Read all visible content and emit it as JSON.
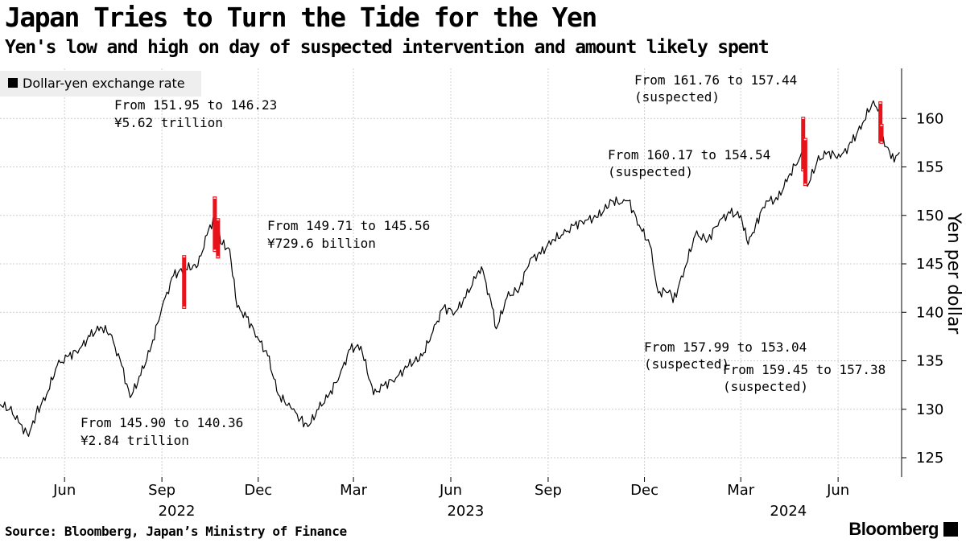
{
  "header": {
    "title": "Japan Tries to Turn the Tide for the Yen",
    "subtitle": "Yen's low and high on day of suspected intervention and amount likely spent"
  },
  "footer": {
    "source": "Source: Bloomberg, Japan’s Ministry of Finance",
    "brand": "Bloomberg"
  },
  "colors": {
    "series": "#000000",
    "intervention": "#e8121b",
    "grid": "#cfcfcf"
  },
  "chart_data": {
    "type": "line",
    "title": "Japan Tries to Turn the Tide for the Yen",
    "subtitle": "Yen's low and high on day of suspected intervention and amount likely spent",
    "ylabel": "Yen per dollar",
    "xlabel": "",
    "ylim": [
      123,
      160.5
    ],
    "xlim": [
      "2022-04-01",
      "2024-07-31"
    ],
    "yticks": [
      125,
      130,
      135,
      140,
      145,
      150,
      155,
      160
    ],
    "xticks": [
      {
        "date": "2022-06-01",
        "label": "Jun"
      },
      {
        "date": "2022-09-01",
        "label": "Sep"
      },
      {
        "date": "2022-12-01",
        "label": "Dec"
      },
      {
        "date": "2023-03-01",
        "label": "Mar"
      },
      {
        "date": "2023-06-01",
        "label": "Jun"
      },
      {
        "date": "2023-09-01",
        "label": "Sep"
      },
      {
        "date": "2023-12-01",
        "label": "Dec"
      },
      {
        "date": "2024-03-01",
        "label": "Mar"
      },
      {
        "date": "2024-06-01",
        "label": "Jun"
      }
    ],
    "year_labels": [
      {
        "date": "2022-09-15",
        "label": "2022"
      },
      {
        "date": "2023-06-15",
        "label": "2023"
      },
      {
        "date": "2024-04-15",
        "label": "2024"
      }
    ],
    "legend": {
      "label": "Dollar-yen exchange rate",
      "position": "top-left"
    },
    "grid": true,
    "series": [
      {
        "name": "Dollar-yen exchange rate",
        "points": [
          [
            "2022-04-01",
            130.5
          ],
          [
            "2022-04-10",
            130.0
          ],
          [
            "2022-04-20",
            128.5
          ],
          [
            "2022-04-28",
            127.2
          ],
          [
            "2022-05-05",
            129.5
          ],
          [
            "2022-05-15",
            131.5
          ],
          [
            "2022-05-25",
            134.5
          ],
          [
            "2022-06-05",
            135.5
          ],
          [
            "2022-06-15",
            136.2
          ],
          [
            "2022-06-25",
            137.5
          ],
          [
            "2022-07-05",
            138.5
          ],
          [
            "2022-07-14",
            137.8
          ],
          [
            "2022-07-25",
            134.5
          ],
          [
            "2022-08-02",
            131.2
          ],
          [
            "2022-08-12",
            133.5
          ],
          [
            "2022-08-22",
            136.5
          ],
          [
            "2022-09-01",
            140.5
          ],
          [
            "2022-09-12",
            143.8
          ],
          [
            "2022-09-22",
            144.5
          ],
          [
            "2022-10-05",
            144.8
          ],
          [
            "2022-10-15",
            148.5
          ],
          [
            "2022-10-21",
            149.8
          ],
          [
            "2022-10-28",
            147.0
          ],
          [
            "2022-11-04",
            146.5
          ],
          [
            "2022-11-11",
            140.5
          ],
          [
            "2022-11-20",
            139.5
          ],
          [
            "2022-11-30",
            137.5
          ],
          [
            "2022-12-10",
            135.5
          ],
          [
            "2022-12-20",
            131.5
          ],
          [
            "2023-01-02",
            130.0
          ],
          [
            "2023-01-10",
            129.0
          ],
          [
            "2023-01-17",
            128.2
          ],
          [
            "2023-01-27",
            130.0
          ],
          [
            "2023-02-06",
            131.5
          ],
          [
            "2023-02-16",
            133.5
          ],
          [
            "2023-02-26",
            136.2
          ],
          [
            "2023-03-08",
            136.5
          ],
          [
            "2023-03-20",
            131.5
          ],
          [
            "2023-03-30",
            132.5
          ],
          [
            "2023-04-10",
            133.2
          ],
          [
            "2023-04-22",
            134.5
          ],
          [
            "2023-05-05",
            135.5
          ],
          [
            "2023-05-15",
            138.0
          ],
          [
            "2023-05-25",
            140.5
          ],
          [
            "2023-06-05",
            140.0
          ],
          [
            "2023-06-15",
            141.5
          ],
          [
            "2023-06-26",
            144.0
          ],
          [
            "2023-06-30",
            144.7
          ],
          [
            "2023-07-10",
            140.5
          ],
          [
            "2023-07-14",
            138.3
          ],
          [
            "2023-07-24",
            141.5
          ],
          [
            "2023-08-05",
            142.5
          ],
          [
            "2023-08-15",
            145.5
          ],
          [
            "2023-08-25",
            146.0
          ],
          [
            "2023-09-05",
            147.5
          ],
          [
            "2023-09-15",
            148.0
          ],
          [
            "2023-09-26",
            149.0
          ],
          [
            "2023-10-06",
            149.5
          ],
          [
            "2023-10-18",
            149.8
          ],
          [
            "2023-10-31",
            151.5
          ],
          [
            "2023-11-10",
            151.3
          ],
          [
            "2023-11-16",
            151.5
          ],
          [
            "2023-11-26",
            149.0
          ],
          [
            "2023-12-06",
            147.0
          ],
          [
            "2023-12-14",
            142.0
          ],
          [
            "2023-12-25",
            142.3
          ],
          [
            "2023-12-28",
            141.0
          ],
          [
            "2024-01-08",
            144.5
          ],
          [
            "2024-01-18",
            148.0
          ],
          [
            "2024-01-30",
            147.5
          ],
          [
            "2024-02-10",
            149.5
          ],
          [
            "2024-02-20",
            150.2
          ],
          [
            "2024-03-01",
            150.0
          ],
          [
            "2024-03-08",
            147.0
          ],
          [
            "2024-03-15",
            149.0
          ],
          [
            "2024-03-25",
            151.5
          ],
          [
            "2024-04-05",
            151.6
          ],
          [
            "2024-04-15",
            154.0
          ],
          [
            "2024-04-26",
            156.0
          ],
          [
            "2024-04-29",
            156.5
          ],
          [
            "2024-05-03",
            153.0
          ],
          [
            "2024-05-12",
            155.5
          ],
          [
            "2024-05-22",
            156.5
          ],
          [
            "2024-06-03",
            156.0
          ],
          [
            "2024-06-14",
            157.5
          ],
          [
            "2024-06-24",
            159.5
          ],
          [
            "2024-07-03",
            161.5
          ],
          [
            "2024-07-10",
            161.0
          ],
          [
            "2024-07-11",
            159.0
          ],
          [
            "2024-07-12",
            157.8
          ],
          [
            "2024-07-18",
            157.0
          ],
          [
            "2024-07-24",
            155.5
          ],
          [
            "2024-07-29",
            156.5
          ]
        ]
      }
    ],
    "interventions": [
      {
        "date": "2022-09-22",
        "high": 145.9,
        "low": 140.36
      },
      {
        "date": "2022-10-21",
        "high": 151.95,
        "low": 146.23
      },
      {
        "date": "2022-10-24",
        "high": 149.71,
        "low": 145.56
      },
      {
        "date": "2024-04-29",
        "high": 160.17,
        "low": 154.54
      },
      {
        "date": "2024-05-01",
        "high": 157.99,
        "low": 153.04
      },
      {
        "date": "2024-07-11",
        "high": 161.76,
        "low": 157.44
      },
      {
        "date": "2024-07-12",
        "high": 159.45,
        "low": 157.38
      }
    ],
    "annotations": [
      {
        "id": "a1",
        "line1": "From 151.95 to 146.23",
        "line2": "¥5.62 trillion"
      },
      {
        "id": "a2",
        "line1": "From 149.71 to 145.56",
        "line2": "¥729.6 billion"
      },
      {
        "id": "a3",
        "line1": "From 145.90 to 140.36",
        "line2": "¥2.84 trillion"
      },
      {
        "id": "a4",
        "line1": "From 161.76 to 157.44",
        "line2": "(suspected)"
      },
      {
        "id": "a5",
        "line1": "From 160.17 to 154.54",
        "line2": "(suspected)"
      },
      {
        "id": "a6",
        "line1": "From 157.99 to 153.04",
        "line2": "(suspected)"
      },
      {
        "id": "a7",
        "line1": "From 159.45 to 157.38",
        "line2": "(suspected)"
      }
    ]
  }
}
